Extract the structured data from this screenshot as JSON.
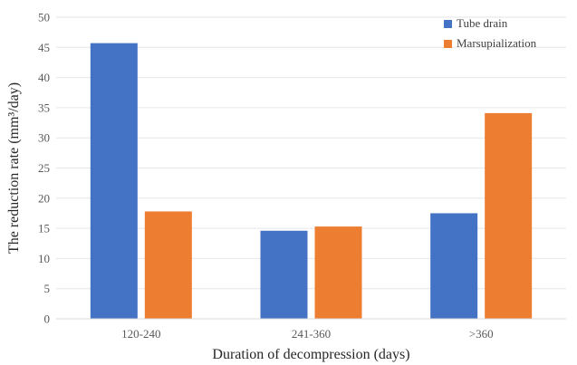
{
  "chart_data": {
    "type": "bar",
    "categories": [
      "120-240",
      "241-360",
      ">360"
    ],
    "series": [
      {
        "name": "Tube drain",
        "values": [
          45.7,
          14.6,
          17.5
        ],
        "color": "#4472C4"
      },
      {
        "name": "Marsupialization",
        "values": [
          17.8,
          15.3,
          34.1
        ],
        "color": "#ED7D31"
      }
    ],
    "xlabel": "Duration of decompression (days)",
    "ylabel": "The reduction rate (mm³/day)",
    "ylim": [
      0,
      50
    ],
    "yticks": [
      "0",
      "5",
      "10",
      "15",
      "20",
      "25",
      "30",
      "35",
      "40",
      "45",
      "50"
    ],
    "grid": true,
    "legend_position": "top-right"
  }
}
